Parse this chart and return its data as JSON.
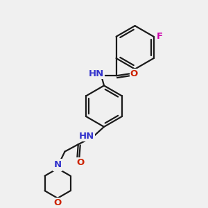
{
  "bg": "#f0f0f0",
  "bond_color": "#1a1a1a",
  "bond_lw": 1.6,
  "colors": {
    "N": "#3333cc",
    "O": "#cc2200",
    "F": "#cc00aa",
    "H": "#558888"
  },
  "fs": 9.5
}
